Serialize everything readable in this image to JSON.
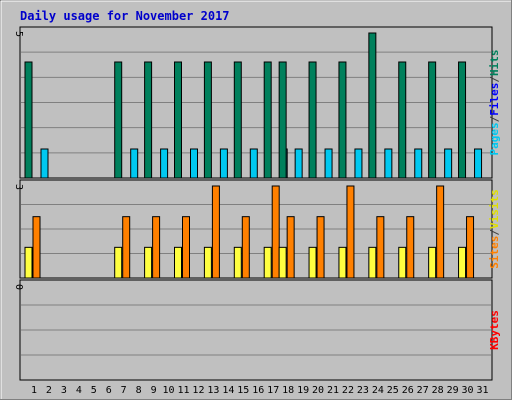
{
  "chart_data": {
    "type": "bar",
    "title": "Daily usage for November 2017",
    "categories": [
      "1",
      "2",
      "3",
      "4",
      "5",
      "6",
      "7",
      "8",
      "9",
      "10",
      "11",
      "12",
      "13",
      "14",
      "15",
      "16",
      "17",
      "18",
      "19",
      "20",
      "21",
      "22",
      "23",
      "24",
      "25",
      "26",
      "27",
      "28",
      "29",
      "30",
      "31"
    ],
    "weekend_days": [
      "4",
      "5",
      "11",
      "12",
      "18",
      "19",
      "25",
      "26"
    ],
    "panels": [
      {
        "name": "hits-files-pages",
        "ymax": 5,
        "ymax_label": "5",
        "series": [
          {
            "name": "Hits",
            "color": "#00805c",
            "values": [
              4,
              0,
              0,
              0,
              0,
              0,
              4,
              0,
              4,
              0,
              4,
              0,
              4,
              0,
              4,
              0,
              4,
              4,
              0,
              4,
              0,
              4,
              0,
              5,
              0,
              4,
              0,
              4,
              0,
              4,
              0
            ]
          },
          {
            "name": "Files",
            "color": "#0000ff",
            "values": [
              0,
              0,
              0,
              0,
              0,
              0,
              0,
              0,
              0,
              0,
              0,
              0,
              0,
              0,
              0,
              0,
              0,
              0,
              0,
              0,
              0,
              0,
              0,
              0,
              0,
              0,
              0,
              0,
              0,
              0,
              0
            ]
          },
          {
            "name": "Pages",
            "color": "#00c8f0",
            "values": [
              1,
              0,
              0,
              0,
              0,
              0,
              1,
              0,
              1,
              0,
              1,
              0,
              1,
              0,
              1,
              0,
              1,
              1,
              0,
              1,
              0,
              1,
              0,
              1,
              0,
              1,
              0,
              1,
              0,
              1,
              0
            ]
          }
        ],
        "right_label": [
          "Pages",
          "/",
          "Files",
          "/",
          "Hits"
        ],
        "right_label_colors": [
          "#00c8f0",
          "#404040",
          "#0000ff",
          "#404040",
          "#00805c"
        ]
      },
      {
        "name": "visits-sites",
        "ymax": 3,
        "ymax_label": "3",
        "series": [
          {
            "name": "Visits",
            "color": "#ffff40",
            "values": [
              1,
              0,
              0,
              0,
              0,
              0,
              1,
              0,
              1,
              0,
              1,
              0,
              1,
              0,
              1,
              0,
              1,
              1,
              0,
              1,
              0,
              1,
              0,
              1,
              0,
              1,
              0,
              1,
              0,
              1,
              0
            ]
          },
          {
            "name": "Sites",
            "color": "#ff8000",
            "values": [
              2,
              0,
              0,
              0,
              0,
              0,
              2,
              0,
              2,
              0,
              2,
              0,
              3,
              0,
              2,
              0,
              3,
              2,
              0,
              2,
              0,
              3,
              0,
              2,
              0,
              2,
              0,
              3,
              0,
              2,
              0
            ]
          }
        ],
        "right_label": [
          "Sites",
          "/",
          "Visits"
        ],
        "right_label_colors": [
          "#ff8000",
          "#404040",
          "#e0e000"
        ]
      },
      {
        "name": "kbytes",
        "ymax": 0,
        "ymax_label": "0",
        "series": [
          {
            "name": "KBytes",
            "color": "#ff0000",
            "values": [
              0,
              0,
              0,
              0,
              0,
              0,
              0,
              0,
              0,
              0,
              0,
              0,
              0,
              0,
              0,
              0,
              0,
              0,
              0,
              0,
              0,
              0,
              0,
              0,
              0,
              0,
              0,
              0,
              0,
              0,
              0
            ]
          }
        ],
        "right_label": [
          "KBytes"
        ],
        "right_label_colors": [
          "#ff0000"
        ]
      }
    ]
  },
  "colors": {
    "background": "#c0c0c0",
    "title": "#0000cc",
    "tick": "#000000",
    "weekend_tick": "#00805c",
    "grid": "#808080"
  }
}
